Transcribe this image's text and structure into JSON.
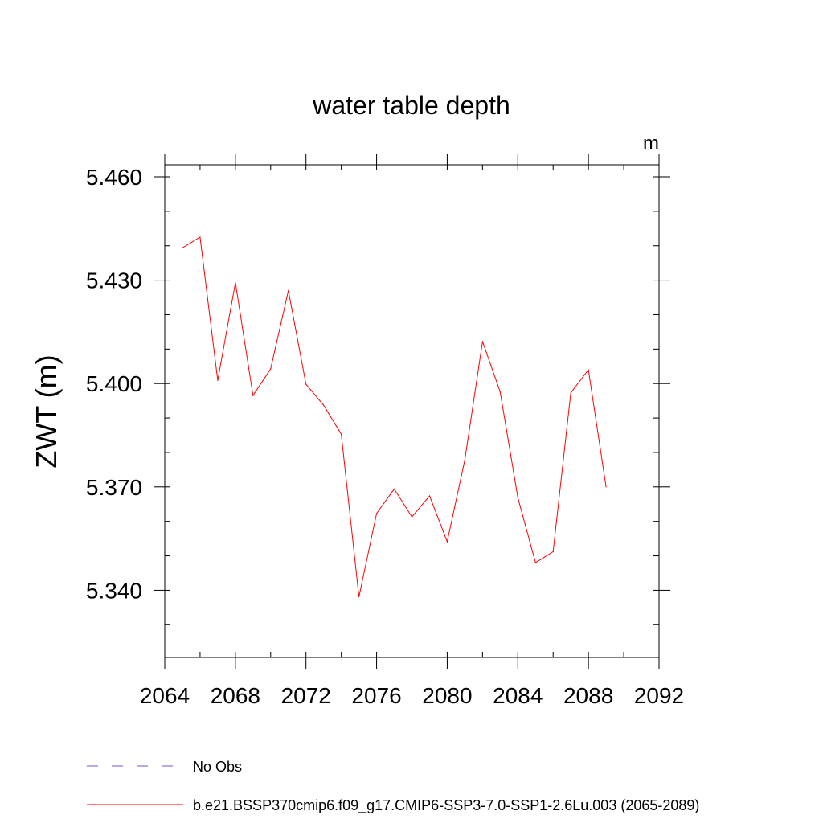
{
  "chart_data": {
    "type": "line",
    "title": "water table depth",
    "units_label": "m",
    "xlabel": "",
    "ylabel": "ZWT  (m)",
    "xlim": [
      2064,
      2092
    ],
    "ylim": [
      5.3205,
      5.4635
    ],
    "x_ticks": [
      2064,
      2068,
      2072,
      2076,
      2080,
      2084,
      2088,
      2092
    ],
    "y_ticks": [
      "5.460",
      "5.430",
      "5.400",
      "5.370",
      "5.340"
    ],
    "y_tick_values": [
      5.46,
      5.43,
      5.4,
      5.37,
      5.34
    ],
    "y_minor_step": 0.01,
    "x_minor_step": 2,
    "series": [
      {
        "name": "b.e21.BSSP370cmip6.f09_g17.CMIP6-SSP3-7.0-SSP1-2.6Lu.003 (2065-2089)",
        "color": "#ff0000",
        "style": "solid",
        "x": [
          2065,
          2066,
          2067,
          2068,
          2069,
          2070,
          2071,
          2072,
          2073,
          2074,
          2075,
          2076,
          2077,
          2078,
          2079,
          2080,
          2081,
          2082,
          2083,
          2084,
          2085,
          2086,
          2087,
          2088,
          2089
        ],
        "y": [
          5.4394,
          5.4425,
          5.4009,
          5.4293,
          5.3965,
          5.4043,
          5.427,
          5.3998,
          5.3937,
          5.3853,
          5.3381,
          5.3623,
          5.3694,
          5.3613,
          5.3674,
          5.3541,
          5.3779,
          5.4122,
          5.3976,
          5.3669,
          5.348,
          5.3512,
          5.3973,
          5.404,
          5.37
        ]
      }
    ],
    "legend": [
      {
        "label": "No Obs",
        "color": "#6a5acd",
        "style": "dashed"
      },
      {
        "label": "b.e21.BSSP370cmip6.f09_g17.CMIP6-SSP3-7.0-SSP1-2.6Lu.003 (2065-2089)",
        "color": "#ff0000",
        "style": "solid"
      }
    ],
    "legend_position": "bottom-left"
  }
}
